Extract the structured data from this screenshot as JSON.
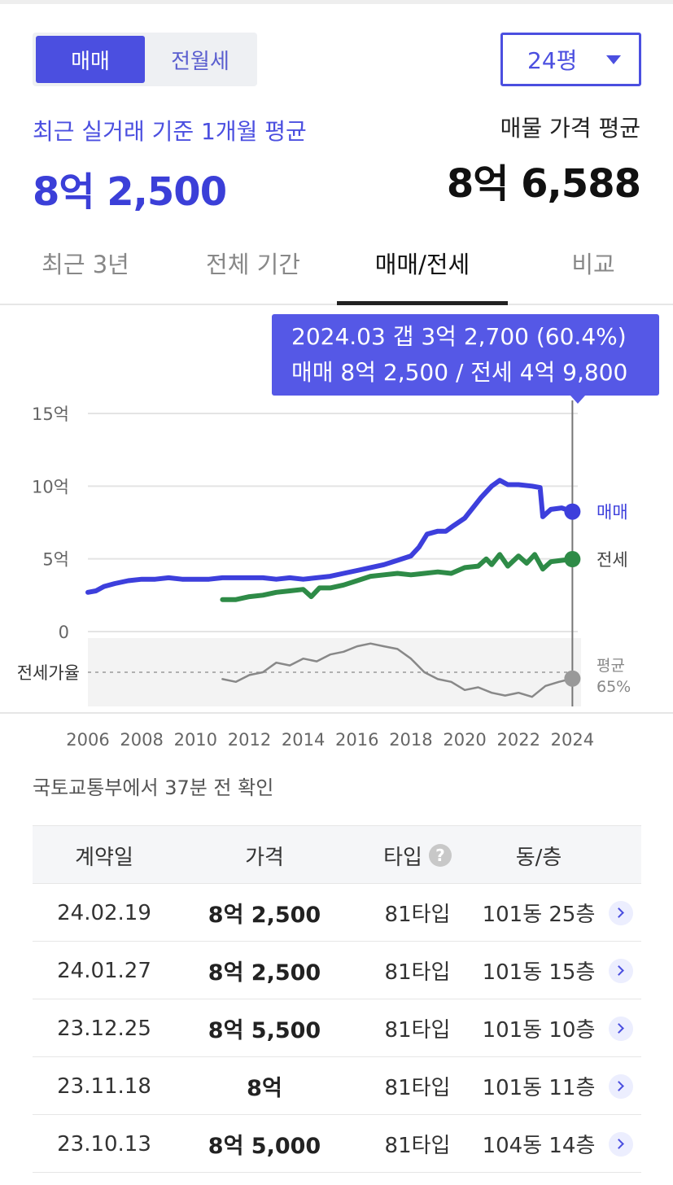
{
  "toggle": {
    "sale_label": "매매",
    "rent_label": "전월세"
  },
  "size_select": {
    "value": "24평"
  },
  "summary": {
    "recent_label": "최근 실거래 기준 1개월 평균",
    "recent_value": "8억 2,500",
    "listing_label": "매물 가격 평균",
    "listing_value": "8억 6,588"
  },
  "tabs": [
    {
      "label": "최근 3년"
    },
    {
      "label": "전체 기간"
    },
    {
      "label": "매매/전세"
    },
    {
      "label": "비교"
    }
  ],
  "active_tab": "매매/전세",
  "tooltip": {
    "line1": "2024.03  갭 3억 2,700 (60.4%)",
    "line2": "매매 8억 2,500 / 전세 4억 9,800"
  },
  "chart_data": {
    "type": "line",
    "title": "",
    "xlabel": "",
    "ylabel": "",
    "y_ticks": [
      "15억",
      "10억",
      "5억",
      "0"
    ],
    "x_ticks": [
      "2006",
      "2008",
      "2010",
      "2012",
      "2014",
      "2016",
      "2018",
      "2020",
      "2022",
      "2024"
    ],
    "xlim": [
      2006,
      2024.2
    ],
    "ylim": [
      0,
      15
    ],
    "y_unit": "억",
    "grid": true,
    "colors": {
      "sale": "#3d3fdc",
      "jeonse": "#2e8b47",
      "ratio": "#888888"
    },
    "series": [
      {
        "name": "매매",
        "x": [
          2006.0,
          2006.3,
          2006.6,
          2007.0,
          2007.5,
          2008.0,
          2008.5,
          2009.0,
          2009.5,
          2010.0,
          2010.5,
          2011.0,
          2011.5,
          2012.0,
          2012.5,
          2013.0,
          2013.5,
          2014.0,
          2014.5,
          2015.0,
          2015.5,
          2016.0,
          2016.5,
          2017.0,
          2017.5,
          2018.0,
          2018.3,
          2018.6,
          2019.0,
          2019.3,
          2019.6,
          2020.0,
          2020.3,
          2020.6,
          2021.0,
          2021.3,
          2021.6,
          2022.0,
          2022.5,
          2022.8,
          2022.9,
          2023.2,
          2023.6,
          2024.0
        ],
        "values": [
          2.7,
          2.8,
          3.1,
          3.3,
          3.5,
          3.6,
          3.6,
          3.7,
          3.6,
          3.6,
          3.6,
          3.7,
          3.7,
          3.7,
          3.7,
          3.6,
          3.7,
          3.6,
          3.7,
          3.8,
          4.0,
          4.2,
          4.4,
          4.6,
          4.9,
          5.2,
          5.8,
          6.7,
          6.9,
          6.9,
          7.3,
          7.8,
          8.5,
          9.2,
          10.0,
          10.4,
          10.1,
          10.1,
          10.0,
          9.9,
          7.9,
          8.4,
          8.5,
          8.25
        ]
      },
      {
        "name": "전세",
        "x": [
          2011.0,
          2011.5,
          2012.0,
          2012.5,
          2013.0,
          2013.5,
          2014.0,
          2014.3,
          2014.6,
          2015.0,
          2015.5,
          2016.0,
          2016.5,
          2017.0,
          2017.5,
          2018.0,
          2018.5,
          2019.0,
          2019.5,
          2020.0,
          2020.5,
          2020.8,
          2021.0,
          2021.3,
          2021.6,
          2022.0,
          2022.3,
          2022.6,
          2022.9,
          2023.2,
          2023.6,
          2024.0
        ],
        "values": [
          2.2,
          2.2,
          2.4,
          2.5,
          2.7,
          2.8,
          2.9,
          2.4,
          3.0,
          3.0,
          3.2,
          3.5,
          3.8,
          3.9,
          4.0,
          3.9,
          4.0,
          4.1,
          4.0,
          4.4,
          4.5,
          5.0,
          4.6,
          5.3,
          4.5,
          5.2,
          4.7,
          5.3,
          4.3,
          4.8,
          4.9,
          4.98
        ]
      }
    ],
    "ratio_series": {
      "name": "전세가율",
      "average_label": "평균",
      "average_value": "65%",
      "x": [
        2011.0,
        2011.5,
        2012.0,
        2012.5,
        2013.0,
        2013.5,
        2014.0,
        2014.5,
        2015.0,
        2015.5,
        2016.0,
        2016.5,
        2017.0,
        2017.5,
        2018.0,
        2018.5,
        2019.0,
        2019.5,
        2020.0,
        2020.5,
        2021.0,
        2021.5,
        2022.0,
        2022.5,
        2023.0,
        2023.5,
        2024.0
      ],
      "values": [
        60,
        58,
        63,
        65,
        72,
        70,
        75,
        73,
        78,
        80,
        84,
        86,
        84,
        82,
        75,
        65,
        60,
        58,
        52,
        54,
        50,
        48,
        50,
        47,
        55,
        58,
        60.4
      ]
    },
    "highlight": {
      "x": 2024.0,
      "label": "2024.03"
    }
  },
  "source_note": "국토교통부에서 37분 전 확인",
  "table": {
    "headers": {
      "date": "계약일",
      "price": "가격",
      "type": "타입",
      "type_help": "?",
      "dong": "동/층"
    },
    "rows": [
      {
        "date": "24.02.19",
        "price": "8억 2,500",
        "type": "81타입",
        "dong": "101동 25층"
      },
      {
        "date": "24.01.27",
        "price": "8억 2,500",
        "type": "81타입",
        "dong": "101동 15층"
      },
      {
        "date": "23.12.25",
        "price": "8억 5,500",
        "type": "81타입",
        "dong": "101동 10층"
      },
      {
        "date": "23.11.18",
        "price": "8억",
        "type": "81타입",
        "dong": "101동 11층"
      },
      {
        "date": "23.10.13",
        "price": "8억 5,000",
        "type": "81타입",
        "dong": "104동 14층"
      }
    ]
  }
}
